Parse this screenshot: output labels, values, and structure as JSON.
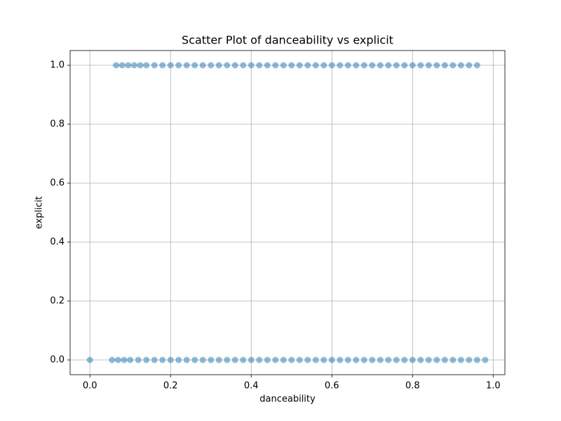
{
  "chart_data": {
    "type": "scatter",
    "title": "Scatter Plot of danceability vs explicit",
    "x_label": "danceability",
    "y_label": "explicit",
    "color": "#1f77b4",
    "grid": true,
    "xlim": [
      -0.049,
      1.029
    ],
    "ylim": [
      -0.05,
      1.05
    ],
    "xticks": [
      {
        "value": 0,
        "label": "0.0"
      },
      0.2,
      0.4,
      0.6,
      0.8,
      {
        "value": 1,
        "label": "1.0"
      }
    ],
    "yticks": [
      {
        "value": 0,
        "label": "0.0"
      },
      0.2,
      0.4,
      0.6,
      0.8,
      {
        "value": 1,
        "label": "1.0"
      }
    ],
    "x": [
      0,
      0.055,
      0.07,
      0.085,
      0.1,
      0.12,
      0.14,
      0.16,
      0.18,
      0.2,
      0.22,
      0.24,
      0.26,
      0.28,
      0.3,
      0.32,
      0.34,
      0.36,
      0.38,
      0.4,
      0.42,
      0.44,
      0.46,
      0.48,
      0.5,
      0.52,
      0.54,
      0.56,
      0.58,
      0.6,
      0.62,
      0.64,
      0.66,
      0.68,
      0.7,
      0.72,
      0.74,
      0.76,
      0.78,
      0.8,
      0.82,
      0.84,
      0.86,
      0.88,
      0.9,
      0.92,
      0.94,
      0.96,
      0.98,
      0.065,
      0.08,
      0.095,
      0.11,
      0.125,
      0.14,
      0.16,
      0.18,
      0.2,
      0.22,
      0.24,
      0.26,
      0.28,
      0.3,
      0.32,
      0.34,
      0.36,
      0.38,
      0.4,
      0.42,
      0.44,
      0.46,
      0.48,
      0.5,
      0.52,
      0.54,
      0.56,
      0.58,
      0.6,
      0.62,
      0.64,
      0.66,
      0.68,
      0.7,
      0.72,
      0.74,
      0.76,
      0.78,
      0.8,
      0.82,
      0.84,
      0.86,
      0.88,
      0.9,
      0.92,
      0.94,
      0.96
    ],
    "y": [
      0,
      0,
      0,
      0,
      0,
      0,
      0,
      0,
      0,
      0,
      0,
      0,
      0,
      0,
      0,
      0,
      0,
      0,
      0,
      0,
      0,
      0,
      0,
      0,
      0,
      0,
      0,
      0,
      0,
      0,
      0,
      0,
      0,
      0,
      0,
      0,
      0,
      0,
      0,
      0,
      0,
      0,
      0,
      0,
      0,
      0,
      0,
      0,
      0,
      1,
      1,
      1,
      1,
      1,
      1,
      1,
      1,
      1,
      1,
      1,
      1,
      1,
      1,
      1,
      1,
      1,
      1,
      1,
      1,
      1,
      1,
      1,
      1,
      1,
      1,
      1,
      1,
      1,
      1,
      1,
      1,
      1,
      1,
      1,
      1,
      1,
      1,
      1,
      1,
      1,
      1,
      1,
      1,
      1,
      1,
      1
    ]
  }
}
